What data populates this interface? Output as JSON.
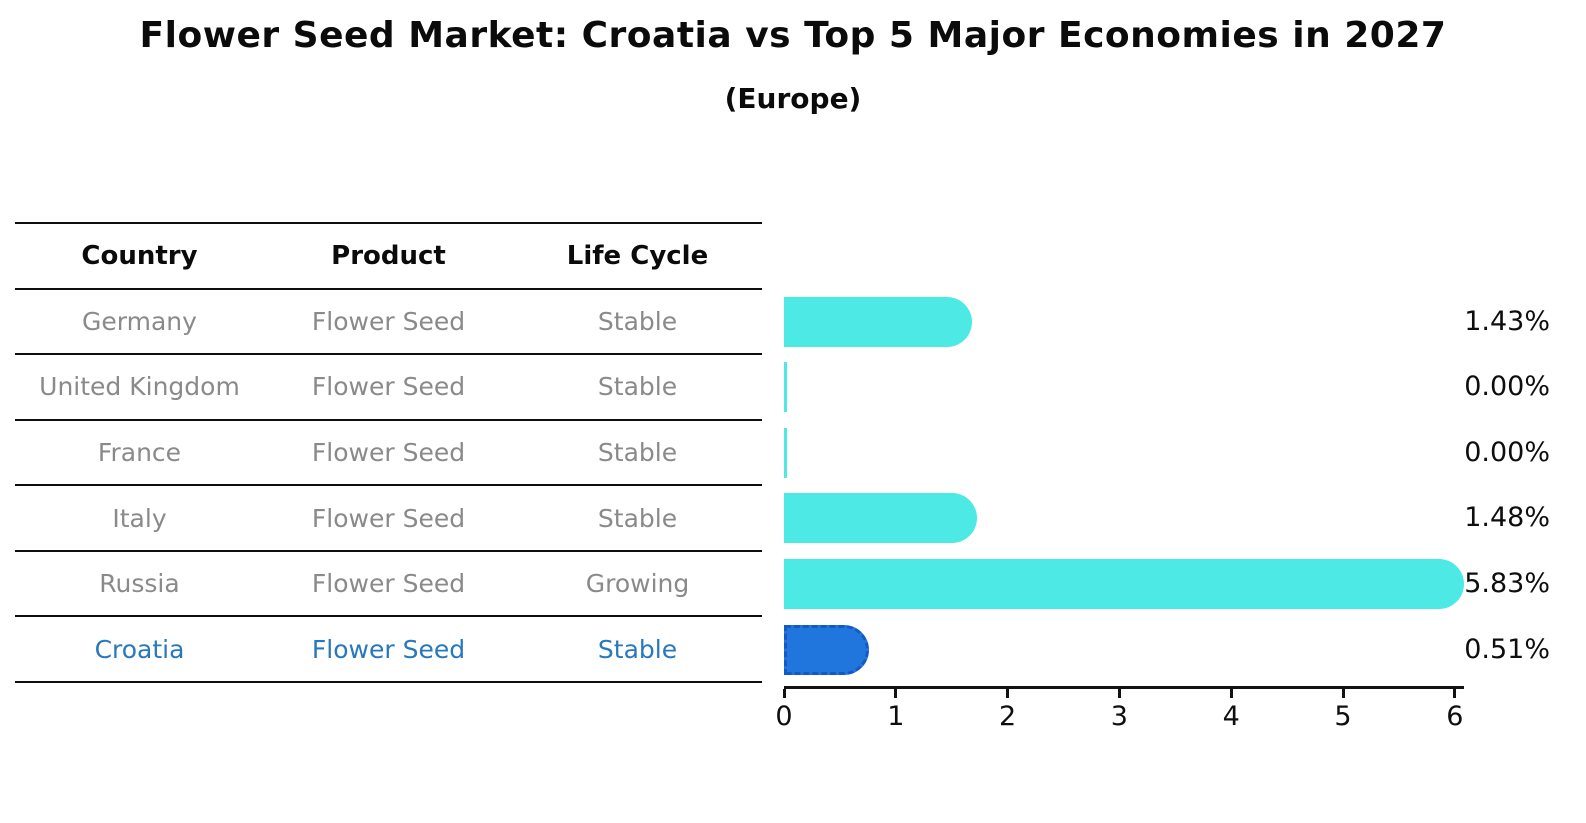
{
  "title": "Flower Seed Market: Croatia vs Top 5 Major Economies in 2027",
  "subtitle": "(Europe)",
  "table": {
    "headers": [
      "Country",
      "Product",
      "Life Cycle"
    ],
    "rows": [
      {
        "country": "Germany",
        "product": "Flower Seed",
        "life_cycle": "Stable",
        "highlight": false
      },
      {
        "country": "United Kingdom",
        "product": "Flower Seed",
        "life_cycle": "Stable",
        "highlight": false
      },
      {
        "country": "France",
        "product": "Flower Seed",
        "life_cycle": "Stable",
        "highlight": false
      },
      {
        "country": "Italy",
        "product": "Flower Seed",
        "life_cycle": "Stable",
        "highlight": false
      },
      {
        "country": "Russia",
        "product": "Flower Seed",
        "life_cycle": "Growing",
        "highlight": false
      },
      {
        "country": "Croatia",
        "product": "Flower Seed",
        "life_cycle": "Stable",
        "highlight": true
      }
    ]
  },
  "chart_data": {
    "type": "bar",
    "orientation": "horizontal",
    "title": "Flower Seed Market: Croatia vs Top 5 Major Economies in 2027",
    "subtitle": "(Europe)",
    "categories": [
      "Germany",
      "United Kingdom",
      "France",
      "Italy",
      "Russia",
      "Croatia"
    ],
    "values": [
      1.43,
      0.0,
      0.0,
      1.48,
      5.83,
      0.51
    ],
    "value_labels": [
      "1.43%",
      "0.00%",
      "0.00%",
      "1.48%",
      "5.83%",
      "0.51%"
    ],
    "xlim": [
      0,
      6
    ],
    "x_ticks": [
      "0",
      "1",
      "2",
      "3",
      "4",
      "5",
      "6"
    ],
    "grid": false,
    "legend": "none",
    "highlight_index": 5
  },
  "colors": {
    "bar": "#4DE9E4",
    "highlight_bar": "#2176DE",
    "highlight_border": "#1559C7",
    "table_text": "#8a8a8a",
    "highlight_text": "#2878be",
    "axis": "#121212",
    "text": "#0b0b0b"
  }
}
